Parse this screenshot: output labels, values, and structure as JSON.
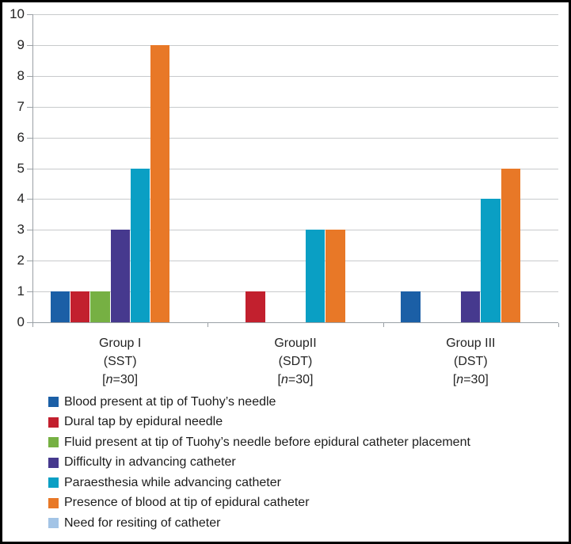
{
  "figure": {
    "background_color": "#ffffff",
    "border_color": "#000000",
    "axis_color": "#9aa0a5",
    "grid_color": "#c8cacc",
    "text_color": "#242424"
  },
  "chart_data": {
    "type": "bar",
    "title": "",
    "xlabel": "",
    "ylabel": "",
    "ylim": [
      0,
      10
    ],
    "ytick_step": 1,
    "grid": true,
    "legend_position": "bottom-left",
    "categories": [
      {
        "name": "Group I",
        "subtitle": "(SST)",
        "n_label": "[n=30]"
      },
      {
        "name": "GroupII",
        "subtitle": "(SDT)",
        "n_label": "[n=30]"
      },
      {
        "name": "Group III",
        "subtitle": "(DST)",
        "n_label": "[n=30]"
      }
    ],
    "series": [
      {
        "name": "Blood present at tip of Tuohy’s needle",
        "color": "#1B5FA6",
        "values": [
          1,
          0,
          1
        ]
      },
      {
        "name": "Dural tap by epidural needle",
        "color": "#C2202E",
        "values": [
          1,
          1,
          0
        ]
      },
      {
        "name": "Fluid present at tip of Tuohy’s needle before epidural catheter placement",
        "color": "#76B043",
        "values": [
          1,
          0,
          0
        ]
      },
      {
        "name": "Difficulty in advancing catheter",
        "color": "#46398E",
        "values": [
          3,
          0,
          1
        ]
      },
      {
        "name": "Paraesthesia while advancing catheter",
        "color": "#0A9FC4",
        "values": [
          5,
          3,
          4
        ]
      },
      {
        "name": "Presence of blood at tip of epidural catheter",
        "color": "#E87827",
        "values": [
          9,
          3,
          5
        ]
      },
      {
        "name": "Need for resiting of catheter",
        "color": "#A3C4E6",
        "values": [
          0,
          0,
          0
        ]
      }
    ]
  }
}
